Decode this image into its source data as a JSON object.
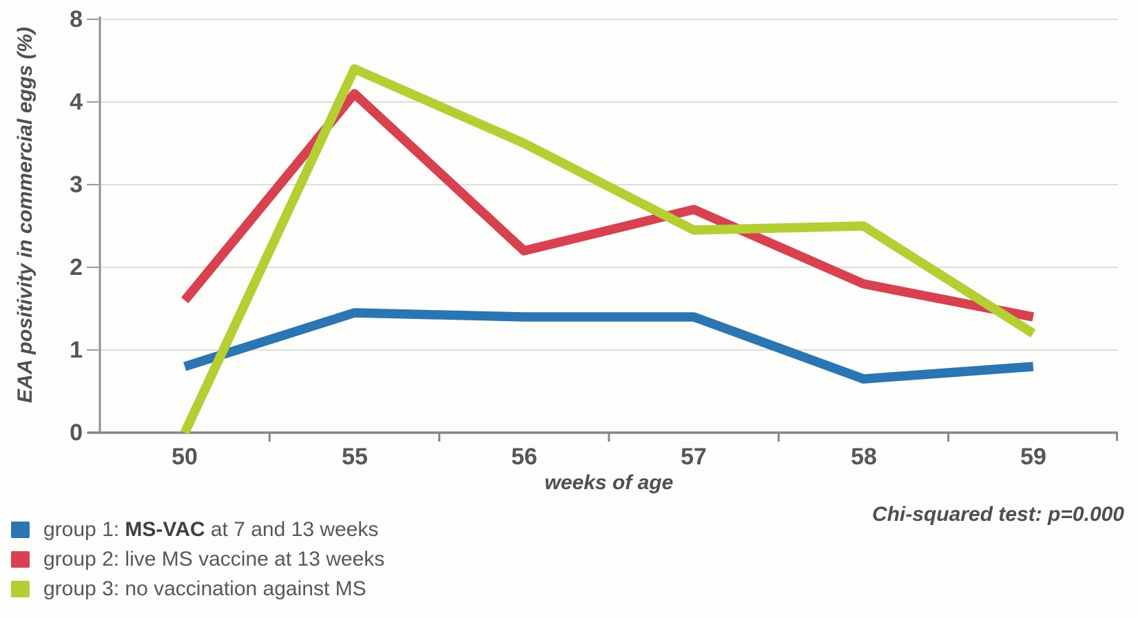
{
  "chart_data": {
    "type": "line",
    "title": "",
    "xlabel": "weeks of age",
    "ylabel": "EAA positivity in commercial eggs (%)",
    "categories": [
      "50",
      "55",
      "56",
      "57",
      "58",
      "59"
    ],
    "y_tick_labels": [
      "0",
      "1",
      "2",
      "3",
      "4",
      "8"
    ],
    "ylim": [
      0,
      8
    ],
    "y_axis_style": "evenly spaced ticks labeled 0,1,2,3,4,8 (top interval compressed)",
    "grid": true,
    "legend_position": "bottom-left",
    "series": [
      {
        "name": "group 1: MS-VAC at 7 and 13 weeks",
        "color": "#2a75b2",
        "values": [
          0.8,
          1.45,
          1.4,
          1.4,
          0.65,
          0.8
        ]
      },
      {
        "name": "group 2: live MS vaccine at 13 weeks",
        "color": "#d8414f",
        "values": [
          1.6,
          4.1,
          2.2,
          2.7,
          1.8,
          1.4
        ]
      },
      {
        "name": "group 3: no vaccination against MS",
        "color": "#b5ce33",
        "values": [
          0,
          4.4,
          3.5,
          2.45,
          2.5,
          1.2
        ]
      }
    ],
    "annotation": "Chi-squared test: p=0.000"
  },
  "legend": {
    "items": [
      {
        "label_prefix": "group 1: ",
        "label_bold": "MS-VAC",
        "label_suffix": " at 7 and 13 weeks"
      },
      {
        "label_prefix": "group 2: live MS vaccine at 13 weeks",
        "label_bold": "",
        "label_suffix": ""
      },
      {
        "label_prefix": "group 3: no vaccination against MS",
        "label_bold": "",
        "label_suffix": ""
      }
    ]
  }
}
